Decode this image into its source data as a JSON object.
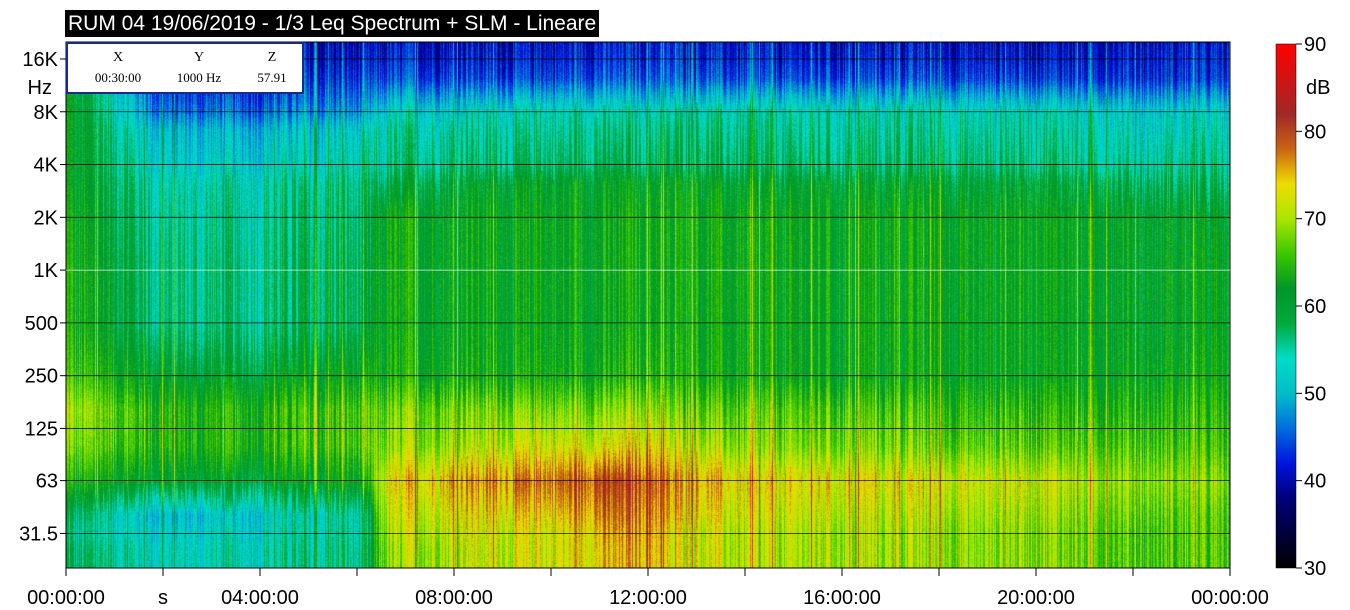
{
  "title": "RUM 04 19/06/2019 - 1/3 Leq Spectrum + SLM - Lineare",
  "cursor_readout": {
    "headers": [
      "X",
      "Y",
      "Z"
    ],
    "values": [
      "00:30:00",
      "1000 Hz",
      "57.91"
    ]
  },
  "chart_data": {
    "type": "heatmap",
    "title": "RUM 04 19/06/2019 - 1/3 Leq Spectrum + SLM - Lineare",
    "y_unit": "Hz",
    "y_scale": "log",
    "y_ticks": [
      "16K",
      "8K",
      "4K",
      "2K",
      "1K",
      "500",
      "250",
      "125",
      "63",
      "31.5"
    ],
    "y_tick_values": [
      16000,
      8000,
      4000,
      2000,
      1000,
      500,
      250,
      125,
      63,
      31.5
    ],
    "x_unit": "s",
    "x_ticks": [
      "00:00:00",
      "04:00:00",
      "08:00:00",
      "12:00:00",
      "16:00:00",
      "20:00:00",
      "00:00:00"
    ],
    "x_range_hours": [
      0,
      24
    ],
    "colorbar": {
      "label": "dB",
      "ticks": [
        90,
        80,
        70,
        60,
        50,
        40,
        30
      ],
      "range": [
        30,
        90
      ]
    },
    "grid": true,
    "profile_hours": [
      0,
      2,
      4,
      6.2,
      6.5,
      8,
      10,
      11,
      12,
      12.5,
      14,
      16,
      18,
      20,
      22,
      24
    ],
    "profile_freqs_hz": [
      25,
      31.5,
      40,
      63,
      100,
      160,
      250,
      500,
      1000,
      2000,
      3150,
      4000,
      6300,
      8000,
      12500,
      16000,
      20000
    ],
    "profile_levels_db": [
      [
        58,
        56,
        58,
        64,
        68,
        70,
        66,
        64,
        64,
        63,
        62,
        62,
        62,
        62,
        62,
        62,
        62
      ],
      [
        53,
        52,
        50,
        60,
        64,
        64,
        60,
        56,
        56,
        55,
        54,
        52,
        50,
        46,
        42,
        41,
        40
      ],
      [
        54,
        53,
        52,
        60,
        64,
        64,
        60,
        56,
        56,
        55,
        54,
        52,
        50,
        46,
        42,
        41,
        40
      ],
      [
        56,
        55,
        55,
        62,
        66,
        66,
        62,
        58,
        58,
        57,
        56,
        54,
        52,
        48,
        43,
        41,
        40
      ],
      [
        68,
        69,
        70,
        72,
        68,
        67,
        63,
        62,
        62,
        62,
        58,
        55,
        54,
        52,
        44,
        42,
        41
      ],
      [
        71,
        72,
        73,
        76,
        70,
        68,
        63,
        62,
        62,
        62,
        60,
        57,
        55,
        53,
        44,
        42,
        41
      ],
      [
        72,
        72,
        74,
        78,
        72,
        68,
        63,
        62,
        62,
        62,
        61,
        57,
        55,
        54,
        44,
        42,
        41
      ],
      [
        74,
        75,
        77,
        80,
        72,
        68,
        63,
        62,
        62,
        62,
        61,
        58,
        56,
        54,
        45,
        43,
        42
      ],
      [
        76,
        77,
        78,
        80,
        74,
        70,
        65,
        63,
        63,
        63,
        61,
        58,
        56,
        54,
        45,
        43,
        42
      ],
      [
        72,
        72,
        74,
        76,
        71,
        67,
        63,
        62,
        62,
        62,
        61,
        58,
        56,
        54,
        45,
        43,
        42
      ],
      [
        70,
        70,
        71,
        73,
        68,
        66,
        62,
        62,
        62,
        62,
        60,
        57,
        55,
        54,
        44,
        42,
        41
      ],
      [
        70,
        70,
        71,
        73,
        68,
        66,
        62,
        62,
        62,
        62,
        60,
        57,
        55,
        54,
        44,
        42,
        41
      ],
      [
        69,
        69,
        70,
        72,
        67,
        65,
        62,
        62,
        62,
        62,
        60,
        57,
        55,
        54,
        44,
        42,
        41
      ],
      [
        69,
        69,
        70,
        72,
        67,
        65,
        62,
        62,
        62,
        62,
        60,
        57,
        55,
        54,
        44,
        42,
        41
      ],
      [
        66,
        66,
        67,
        69,
        66,
        64,
        62,
        61,
        61,
        61,
        58,
        55,
        53,
        52,
        43,
        42,
        41
      ],
      [
        66,
        66,
        66,
        68,
        65,
        64,
        62,
        61,
        61,
        60,
        57,
        55,
        53,
        52,
        43,
        42,
        41
      ]
    ]
  }
}
